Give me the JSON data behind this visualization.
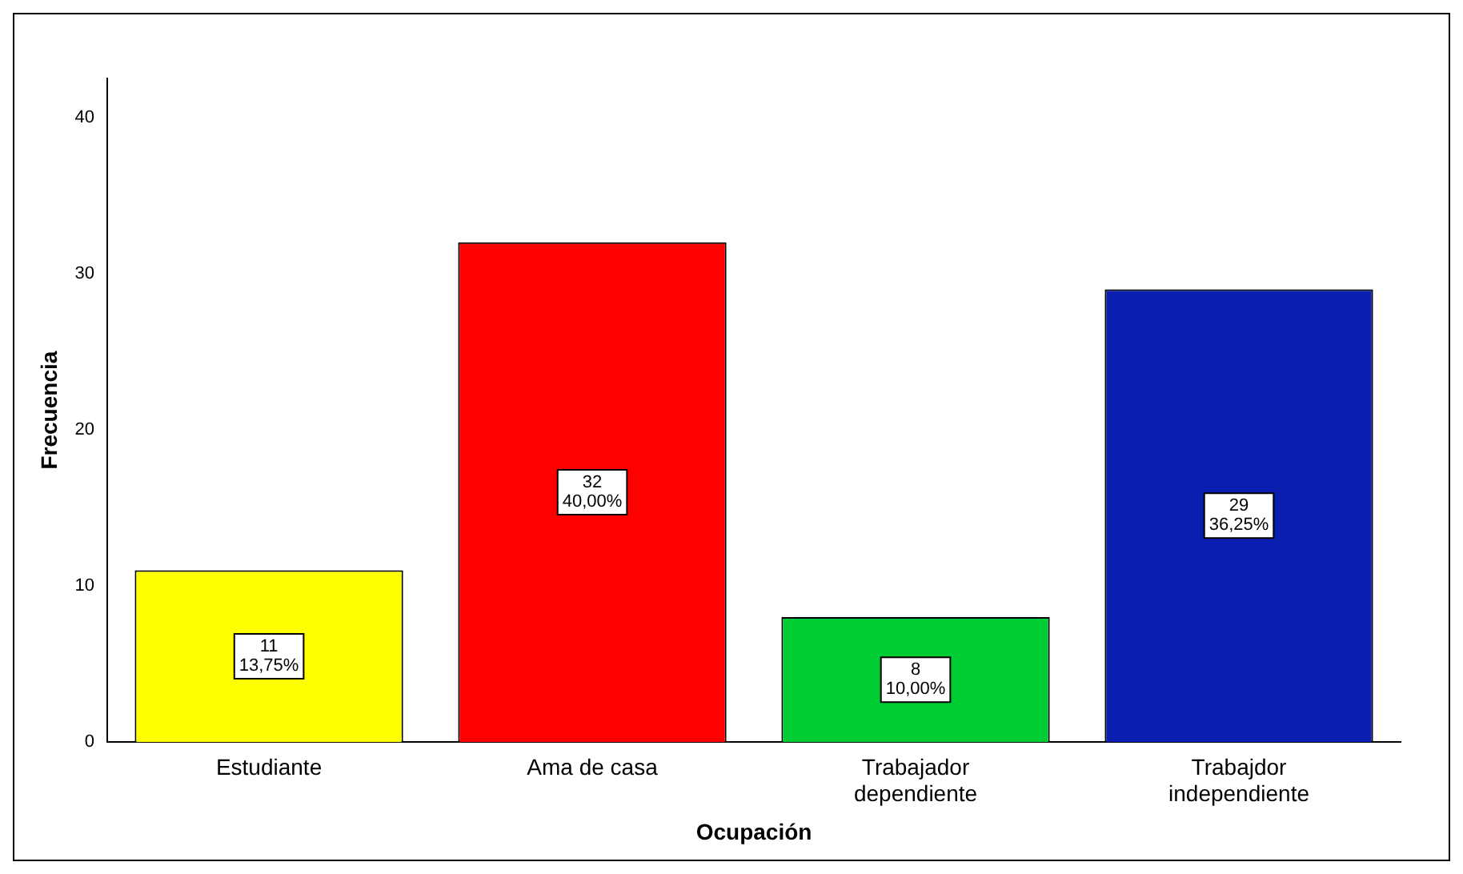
{
  "chart_data": {
    "type": "bar",
    "xlabel": "Ocupación",
    "ylabel": "Frecuencia",
    "categories": [
      "Estudiante",
      "Ama de casa",
      "Trabajador dependiente",
      "Trabajdor independiente"
    ],
    "values": [
      11,
      32,
      8,
      29
    ],
    "colors": [
      "#ffff00",
      "#ff0000",
      "#00cc33",
      "#0a1fb0"
    ],
    "value_labels": [
      "11 13,75%",
      "32 40,00%",
      "8 10,00%",
      "29 36,25%"
    ],
    "ylim": [
      0,
      42.5
    ],
    "yticks": [
      0,
      10,
      20,
      30,
      40
    ],
    "grid": false,
    "legend": false
  }
}
